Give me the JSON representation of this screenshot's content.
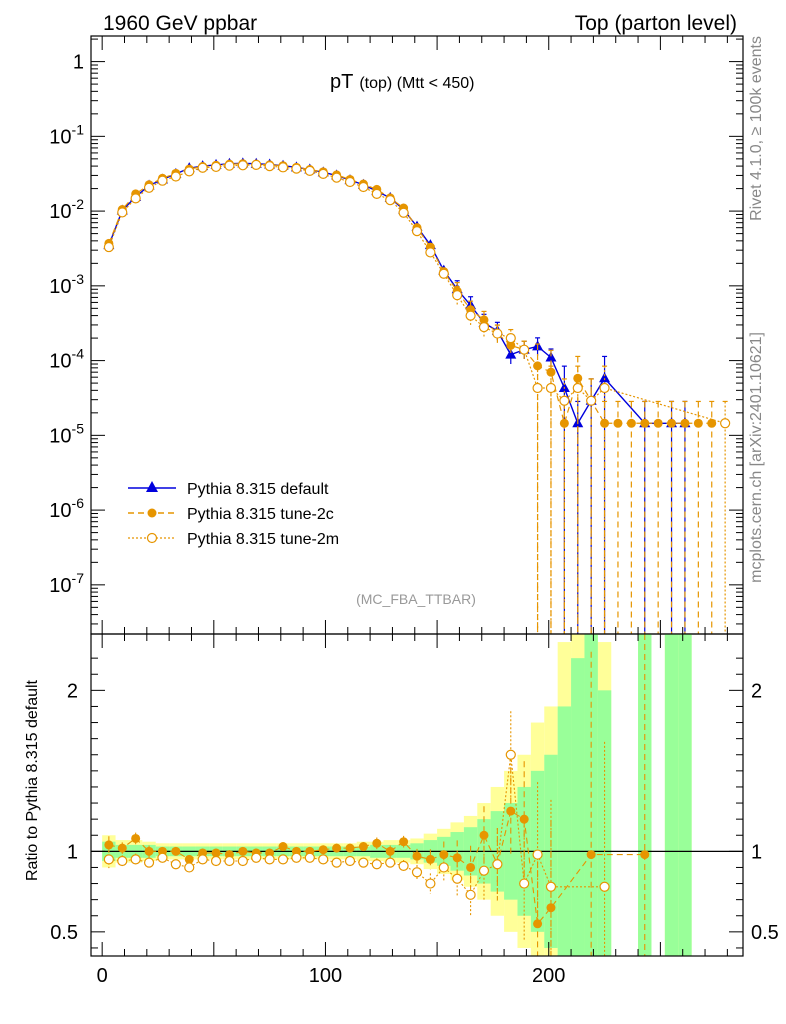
{
  "header": {
    "left": "1960 GeV ppbar",
    "right": "Top (parton level)"
  },
  "side": {
    "rivet": "Rivet 4.1.0, ≥ 100k events",
    "mcplots": "mcplots.cern.ch [arXiv:2401.10621]"
  },
  "chart_data": {
    "type": "line",
    "title": "pT (top) (Mtt < 450)",
    "title_main": "pT",
    "title_sub": "(top) (Mtt < 450)",
    "analysis_tag": "(MC_FBA_TTBAR)",
    "xlabel": "",
    "ylabel_ratio": "Ratio to Pythia 8.315 default",
    "xlim": [
      -5,
      287
    ],
    "ylim_main": [
      2.2e-08,
      2.2
    ],
    "ylim_ratio": [
      0.35,
      2.35
    ],
    "x_ticks": [
      "0",
      "100",
      "200"
    ],
    "y_ticks_main": [
      {
        "label": "1",
        "exp": ""
      },
      {
        "label": "10",
        "exp": "-1"
      },
      {
        "label": "10",
        "exp": "-2"
      },
      {
        "label": "10",
        "exp": "-3"
      },
      {
        "label": "10",
        "exp": "-4"
      },
      {
        "label": "10",
        "exp": "-5"
      },
      {
        "label": "10",
        "exp": "-6"
      },
      {
        "label": "10",
        "exp": "-7"
      }
    ],
    "y_ticks_ratio": [
      "0.5",
      "1",
      "2"
    ],
    "x": [
      3,
      9,
      15,
      21,
      27,
      33,
      39,
      45,
      51,
      57,
      63,
      69,
      75,
      81,
      87,
      93,
      99,
      105,
      111,
      117,
      123,
      129,
      135,
      141,
      147,
      153,
      159,
      165,
      171,
      177,
      183,
      189,
      195,
      201,
      207,
      213,
      219,
      225,
      231,
      237,
      243,
      249,
      255,
      261,
      267,
      273,
      279
    ],
    "series": [
      {
        "name": "Pythia 8.315 default",
        "color": "#0000dd",
        "values": [
          0.0035,
          0.0102,
          0.0155,
          0.022,
          0.0265,
          0.0315,
          0.0375,
          0.04,
          0.0415,
          0.043,
          0.0435,
          0.043,
          0.042,
          0.0405,
          0.0385,
          0.036,
          0.033,
          0.03,
          0.026,
          0.0225,
          0.0185,
          0.015,
          0.0105,
          0.0062,
          0.0035,
          0.0016,
          0.0009,
          0.00055,
          0.00032,
          0.00025,
          0.00012,
          0.00014,
          0.000155,
          0.00011,
          4.3e-05,
          1.45e-05,
          2.9e-05,
          5.8e-05,
          null,
          null,
          1.45e-05,
          null,
          1.45e-05,
          1.45e-05,
          null,
          null,
          null
        ]
      },
      {
        "name": "Pythia 8.315 tune-2c",
        "color": "#e69500",
        "values": [
          0.0037,
          0.0105,
          0.017,
          0.0225,
          0.0275,
          0.032,
          0.0365,
          0.0395,
          0.041,
          0.0425,
          0.043,
          0.0425,
          0.0415,
          0.0405,
          0.0385,
          0.036,
          0.0335,
          0.0305,
          0.0265,
          0.023,
          0.0195,
          0.015,
          0.011,
          0.006,
          0.0033,
          0.00155,
          0.00085,
          0.00048,
          0.00035,
          0.00023,
          0.00016,
          0.00014,
          8.5e-05,
          7e-05,
          1.45e-05,
          5.8e-05,
          2.9e-05,
          1.45e-05,
          1.45e-05,
          1.45e-05,
          1.45e-05,
          1.45e-05,
          1.45e-05,
          1.45e-05,
          1.45e-05,
          1.45e-05,
          null
        ]
      },
      {
        "name": "Pythia 8.315 tune-2m",
        "color": "#e69500",
        "values": [
          0.0033,
          0.0096,
          0.0148,
          0.0205,
          0.0255,
          0.029,
          0.034,
          0.038,
          0.039,
          0.0405,
          0.041,
          0.0415,
          0.04,
          0.0385,
          0.037,
          0.0345,
          0.0315,
          0.028,
          0.0245,
          0.021,
          0.017,
          0.014,
          0.0095,
          0.0054,
          0.0028,
          0.00145,
          0.00075,
          0.0004,
          0.00028,
          0.00023,
          0.0002,
          0.00014,
          4.3e-05,
          4.3e-05,
          2.9e-05,
          4.3e-05,
          2.9e-05,
          4.3e-05,
          null,
          null,
          null,
          null,
          null,
          null,
          null,
          null,
          1.45e-05
        ]
      }
    ],
    "ratio_series": [
      {
        "name": "Pythia 8.315 tune-2c",
        "values": [
          1.04,
          1.02,
          1.08,
          1.0,
          1.0,
          1.0,
          0.95,
          0.99,
          0.99,
          0.98,
          1.0,
          0.99,
          0.99,
          1.03,
          1.0,
          1.0,
          1.01,
          1.02,
          1.02,
          1.03,
          1.05,
          1.0,
          1.06,
          0.97,
          0.95,
          0.98,
          0.96,
          0.9,
          1.1,
          0.92,
          1.25,
          1.2,
          0.55,
          0.65,
          null,
          null,
          0.98,
          null,
          null,
          null,
          0.98,
          null,
          null,
          null,
          null,
          null,
          null
        ]
      },
      {
        "name": "Pythia 8.315 tune-2m",
        "values": [
          0.95,
          0.94,
          0.95,
          0.93,
          0.96,
          0.92,
          0.9,
          0.95,
          0.94,
          0.94,
          0.94,
          0.96,
          0.95,
          0.95,
          0.96,
          0.96,
          0.95,
          0.93,
          0.94,
          0.93,
          0.92,
          0.93,
          0.91,
          0.87,
          0.8,
          0.9,
          0.83,
          0.73,
          0.88,
          0.92,
          1.6,
          0.8,
          0.98,
          0.78,
          null,
          null,
          null,
          0.78,
          null,
          null,
          null,
          null,
          null,
          null,
          null,
          null,
          null
        ]
      }
    ],
    "uncertainty_bands": {
      "inner_color": "#99ff99",
      "outer_color": "#ffff99",
      "inner": [
        0.06,
        0.04,
        0.04,
        0.04,
        0.03,
        0.03,
        0.03,
        0.03,
        0.03,
        0.03,
        0.03,
        0.03,
        0.03,
        0.03,
        0.03,
        0.03,
        0.03,
        0.03,
        0.03,
        0.03,
        0.04,
        0.04,
        0.04,
        0.05,
        0.07,
        0.09,
        0.12,
        0.15,
        0.2,
        0.25,
        0.3,
        0.4,
        0.5,
        0.6,
        0.9,
        1.2,
        1.4,
        1.0,
        null,
        null,
        2.0,
        null,
        2.0,
        2.0,
        null,
        null,
        null
      ],
      "outer": [
        0.1,
        0.07,
        0.07,
        0.06,
        0.05,
        0.05,
        0.05,
        0.05,
        0.05,
        0.05,
        0.05,
        0.05,
        0.05,
        0.05,
        0.05,
        0.05,
        0.05,
        0.05,
        0.05,
        0.06,
        0.06,
        0.07,
        0.07,
        0.08,
        0.11,
        0.14,
        0.18,
        0.22,
        0.3,
        0.4,
        0.5,
        0.6,
        0.8,
        0.9,
        1.3,
        1.6,
        1.8,
        1.3,
        null,
        null,
        3.0,
        null,
        3.0,
        3.0,
        null,
        null,
        null
      ]
    }
  }
}
